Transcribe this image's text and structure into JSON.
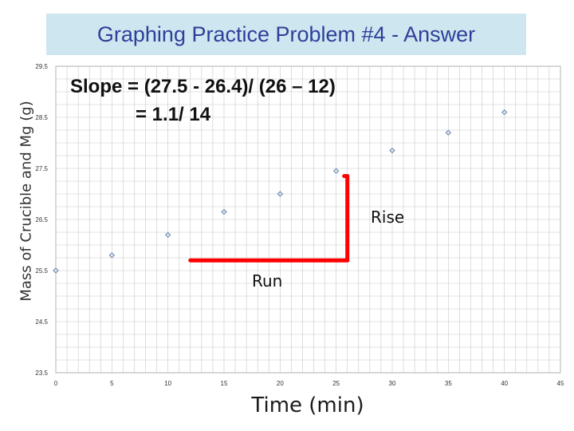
{
  "title": "Graphing Practice Problem #4 - Answer",
  "slope_line1": "Slope = (27.5 - 26.4)/ (26 – 12)",
  "slope_line2": "= 1.1/ 14",
  "rise_label": "Rise",
  "run_label": "Run",
  "colors": {
    "title_bg": "#cde6ef",
    "title_text": "#2e3f9a",
    "points": "#6a87a8",
    "grid": "#c8c8c8",
    "annotation": "#ff0000"
  },
  "chart_data": {
    "type": "scatter",
    "title": "Graphing Practice Problem #4 - Answer",
    "xlabel": "Time (min)",
    "ylabel": "Mass of Crucible and  Mg (g)",
    "xlim": [
      0,
      45
    ],
    "ylim": [
      23.5,
      29.5
    ],
    "x_ticks": [
      0,
      5,
      10,
      15,
      20,
      25,
      30,
      35,
      40,
      45
    ],
    "y_ticks": [
      23.5,
      24.5,
      25.5,
      26.5,
      27.5,
      28.5,
      29.5
    ],
    "grid": true,
    "series": [
      {
        "x": [
          0,
          5,
          10,
          15,
          20,
          25,
          30,
          35,
          40
        ],
        "y": [
          25.5,
          25.8,
          26.2,
          26.65,
          27.0,
          27.45,
          27.85,
          28.2,
          28.6
        ]
      }
    ],
    "annotation": {
      "run": {
        "x": [
          12,
          26
        ],
        "y": 25.7
      },
      "rise": {
        "x": 26,
        "y": [
          25.7,
          27.35
        ]
      }
    }
  }
}
